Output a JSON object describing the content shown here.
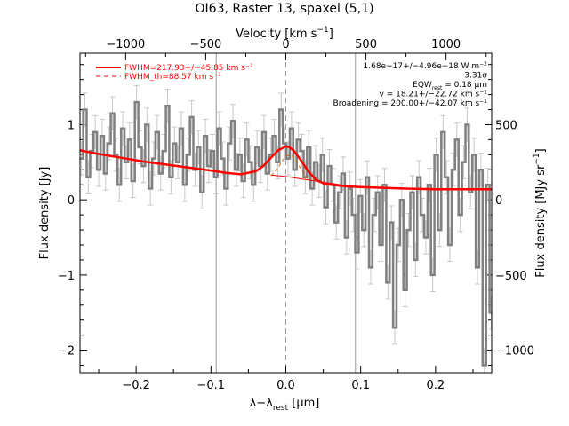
{
  "chart_data": {
    "type": "line",
    "title": "OI63, Raster 13, spaxel (5,1)",
    "xlabel": "λ−λ",
    "xlabel_sub": "rest",
    "xlabel_unit": " [μm]",
    "ylabel": "Flux density [Jy]",
    "top_xlabel": "Velocity [km s",
    "top_xlabel_sup": "−1",
    "top_xlabel_end": "]",
    "right_ylabel": "Flux density [MJy sr",
    "right_ylabel_sup": "−1",
    "right_ylabel_end": "]",
    "xlim": [
      -0.275,
      0.275
    ],
    "ylim": [
      -2.3,
      1.95
    ],
    "top_xlim": [
      -1285,
      1285
    ],
    "right_ylim": [
      -1150,
      975
    ],
    "x_ticks": [
      -0.2,
      -0.1,
      0.0,
      0.1,
      0.2
    ],
    "x_tick_labels": [
      "−0.2",
      "−0.1",
      "0.0",
      "0.1",
      "0.2"
    ],
    "y_ticks": [
      -2,
      -1,
      0,
      1
    ],
    "y_tick_labels": [
      "−2",
      "−1",
      "0",
      "1"
    ],
    "top_ticks": [
      -1000,
      -500,
      0,
      500,
      1000
    ],
    "top_tick_labels": [
      "−1000",
      "−500",
      "0",
      "500",
      "1000"
    ],
    "right_ticks": [
      -1000,
      -500,
      0,
      500
    ],
    "right_tick_labels": [
      "−1000",
      "−500",
      "0",
      "500"
    ],
    "vertical_lines": [
      -0.093,
      0.0,
      0.093
    ],
    "legend": [
      {
        "label": "FWHM=217.93+/−45.85 km s",
        "sup": "−1",
        "color": "#ff0000",
        "style": "solid"
      },
      {
        "label": "FWHM_th=88.57 km s",
        "sup": "−1",
        "color": "#ff0000",
        "style": "dashed"
      }
    ],
    "annotations": [
      {
        "text": "1.68e−17+/−4.96e−18 W m",
        "sup": "−2"
      },
      {
        "text": "3.31σ"
      },
      {
        "text": "EQW",
        "sub": "rest",
        "text2": " = 0.18 μm"
      },
      {
        "text": "v = 18.21+/−22.72 km s",
        "sup": "−1"
      },
      {
        "text": "Broadening = 200.00+/−42.07 km s",
        "sup": "−1"
      }
    ],
    "series": [
      {
        "name": "data",
        "color": "#808080",
        "x": [
          -0.273,
          -0.2684,
          -0.2638,
          -0.2592,
          -0.2546,
          -0.25,
          -0.2454,
          -0.2408,
          -0.2362,
          -0.2316,
          -0.227,
          -0.2224,
          -0.2178,
          -0.2132,
          -0.2086,
          -0.204,
          -0.1994,
          -0.1948,
          -0.1902,
          -0.1856,
          -0.181,
          -0.1764,
          -0.1718,
          -0.1672,
          -0.1626,
          -0.158,
          -0.1534,
          -0.1488,
          -0.1442,
          -0.1396,
          -0.135,
          -0.1304,
          -0.1258,
          -0.1212,
          -0.1166,
          -0.112,
          -0.1074,
          -0.1028,
          -0.0982,
          -0.0936,
          -0.089,
          -0.0844,
          -0.0798,
          -0.0752,
          -0.0706,
          -0.066,
          -0.0614,
          -0.0568,
          -0.0522,
          -0.0476,
          -0.043,
          -0.0384,
          -0.0338,
          -0.0292,
          -0.0246,
          -0.02,
          -0.0154,
          -0.0108,
          -0.0062,
          -0.0016,
          0.003,
          0.0076,
          0.0122,
          0.0168,
          0.0214,
          0.026,
          0.0306,
          0.0352,
          0.0398,
          0.0444,
          0.049,
          0.0536,
          0.0582,
          0.0628,
          0.0674,
          0.072,
          0.0766,
          0.0812,
          0.0858,
          0.0904,
          0.095,
          0.0996,
          0.1042,
          0.1088,
          0.1134,
          0.118,
          0.1226,
          0.1272,
          0.1318,
          0.1364,
          0.141,
          0.1456,
          0.1502,
          0.1548,
          0.1594,
          0.164,
          0.1686,
          0.1732,
          0.1778,
          0.1824,
          0.187,
          0.1916,
          0.1962,
          0.2008,
          0.2054,
          0.21,
          0.2146,
          0.2192,
          0.2238,
          0.2284,
          0.233,
          0.2376,
          0.2422,
          0.2468,
          0.2514,
          0.256,
          0.2606,
          0.2652,
          0.2698,
          0.2744
        ],
        "y": [
          0.55,
          1.2,
          0.3,
          0.65,
          0.9,
          0.4,
          0.85,
          0.35,
          0.75,
          1.15,
          0.6,
          0.2,
          0.95,
          0.5,
          0.8,
          0.25,
          1.3,
          0.7,
          0.45,
          1.0,
          0.15,
          0.55,
          0.9,
          0.35,
          0.65,
          1.25,
          0.3,
          0.75,
          0.5,
          0.95,
          0.2,
          0.6,
          1.1,
          0.4,
          0.7,
          0.1,
          0.85,
          0.45,
          0.65,
          0.3,
          0.95,
          0.55,
          0.15,
          0.75,
          1.05,
          0.4,
          0.6,
          0.25,
          0.8,
          0.5,
          0.2,
          0.7,
          0.45,
          0.9,
          0.35,
          0.6,
          0.85,
          0.5,
          1.2,
          0.75,
          0.55,
          0.95,
          0.4,
          0.8,
          0.65,
          0.3,
          0.7,
          0.15,
          0.5,
          0.25,
          0.6,
          -0.1,
          0.45,
          0.2,
          -0.3,
          0.1,
          0.35,
          -0.5,
          0.15,
          -0.2,
          -0.7,
          0.05,
          -0.4,
          0.3,
          -0.9,
          -0.2,
          0.1,
          -0.6,
          0.2,
          -1.1,
          -0.3,
          -1.7,
          -0.6,
          0.0,
          -1.2,
          -0.4,
          0.1,
          -0.8,
          0.3,
          -0.2,
          -0.5,
          0.2,
          -1.0,
          0.6,
          -0.4,
          0.9,
          0.3,
          -0.6,
          0.4,
          0.8,
          -0.2,
          0.5,
          1.0,
          0.1,
          0.6,
          -0.9,
          0.4,
          -2.2,
          0.2,
          -1.5
        ]
      },
      {
        "name": "fit",
        "color": "#ff0000",
        "x": [
          -0.275,
          -0.25,
          -0.22,
          -0.19,
          -0.16,
          -0.13,
          -0.1,
          -0.08,
          -0.06,
          -0.04,
          -0.03,
          -0.02,
          -0.01,
          0.0,
          0.005,
          0.01,
          0.02,
          0.03,
          0.04,
          0.05,
          0.06,
          0.08,
          0.1,
          0.13,
          0.16,
          0.2,
          0.24,
          0.275
        ],
        "y": [
          0.66,
          0.61,
          0.56,
          0.51,
          0.47,
          0.43,
          0.39,
          0.36,
          0.34,
          0.38,
          0.45,
          0.56,
          0.66,
          0.71,
          0.7,
          0.66,
          0.53,
          0.38,
          0.27,
          0.22,
          0.2,
          0.18,
          0.17,
          0.16,
          0.15,
          0.14,
          0.14,
          0.14
        ]
      },
      {
        "name": "continuum",
        "color": "#ff0000",
        "x": [
          -0.02,
          0.0,
          0.02,
          0.04,
          0.06,
          0.08,
          0.1
        ],
        "y": [
          0.33,
          0.31,
          0.28,
          0.25,
          0.22,
          0.19,
          0.17
        ]
      },
      {
        "name": "thermal",
        "color": "#cc6600",
        "x": [
          -0.02,
          -0.012,
          -0.006,
          0.0,
          0.006,
          0.012,
          0.018,
          0.024,
          0.03
        ],
        "y": [
          0.32,
          0.4,
          0.5,
          0.58,
          0.6,
          0.55,
          0.45,
          0.35,
          0.27
        ]
      }
    ]
  }
}
